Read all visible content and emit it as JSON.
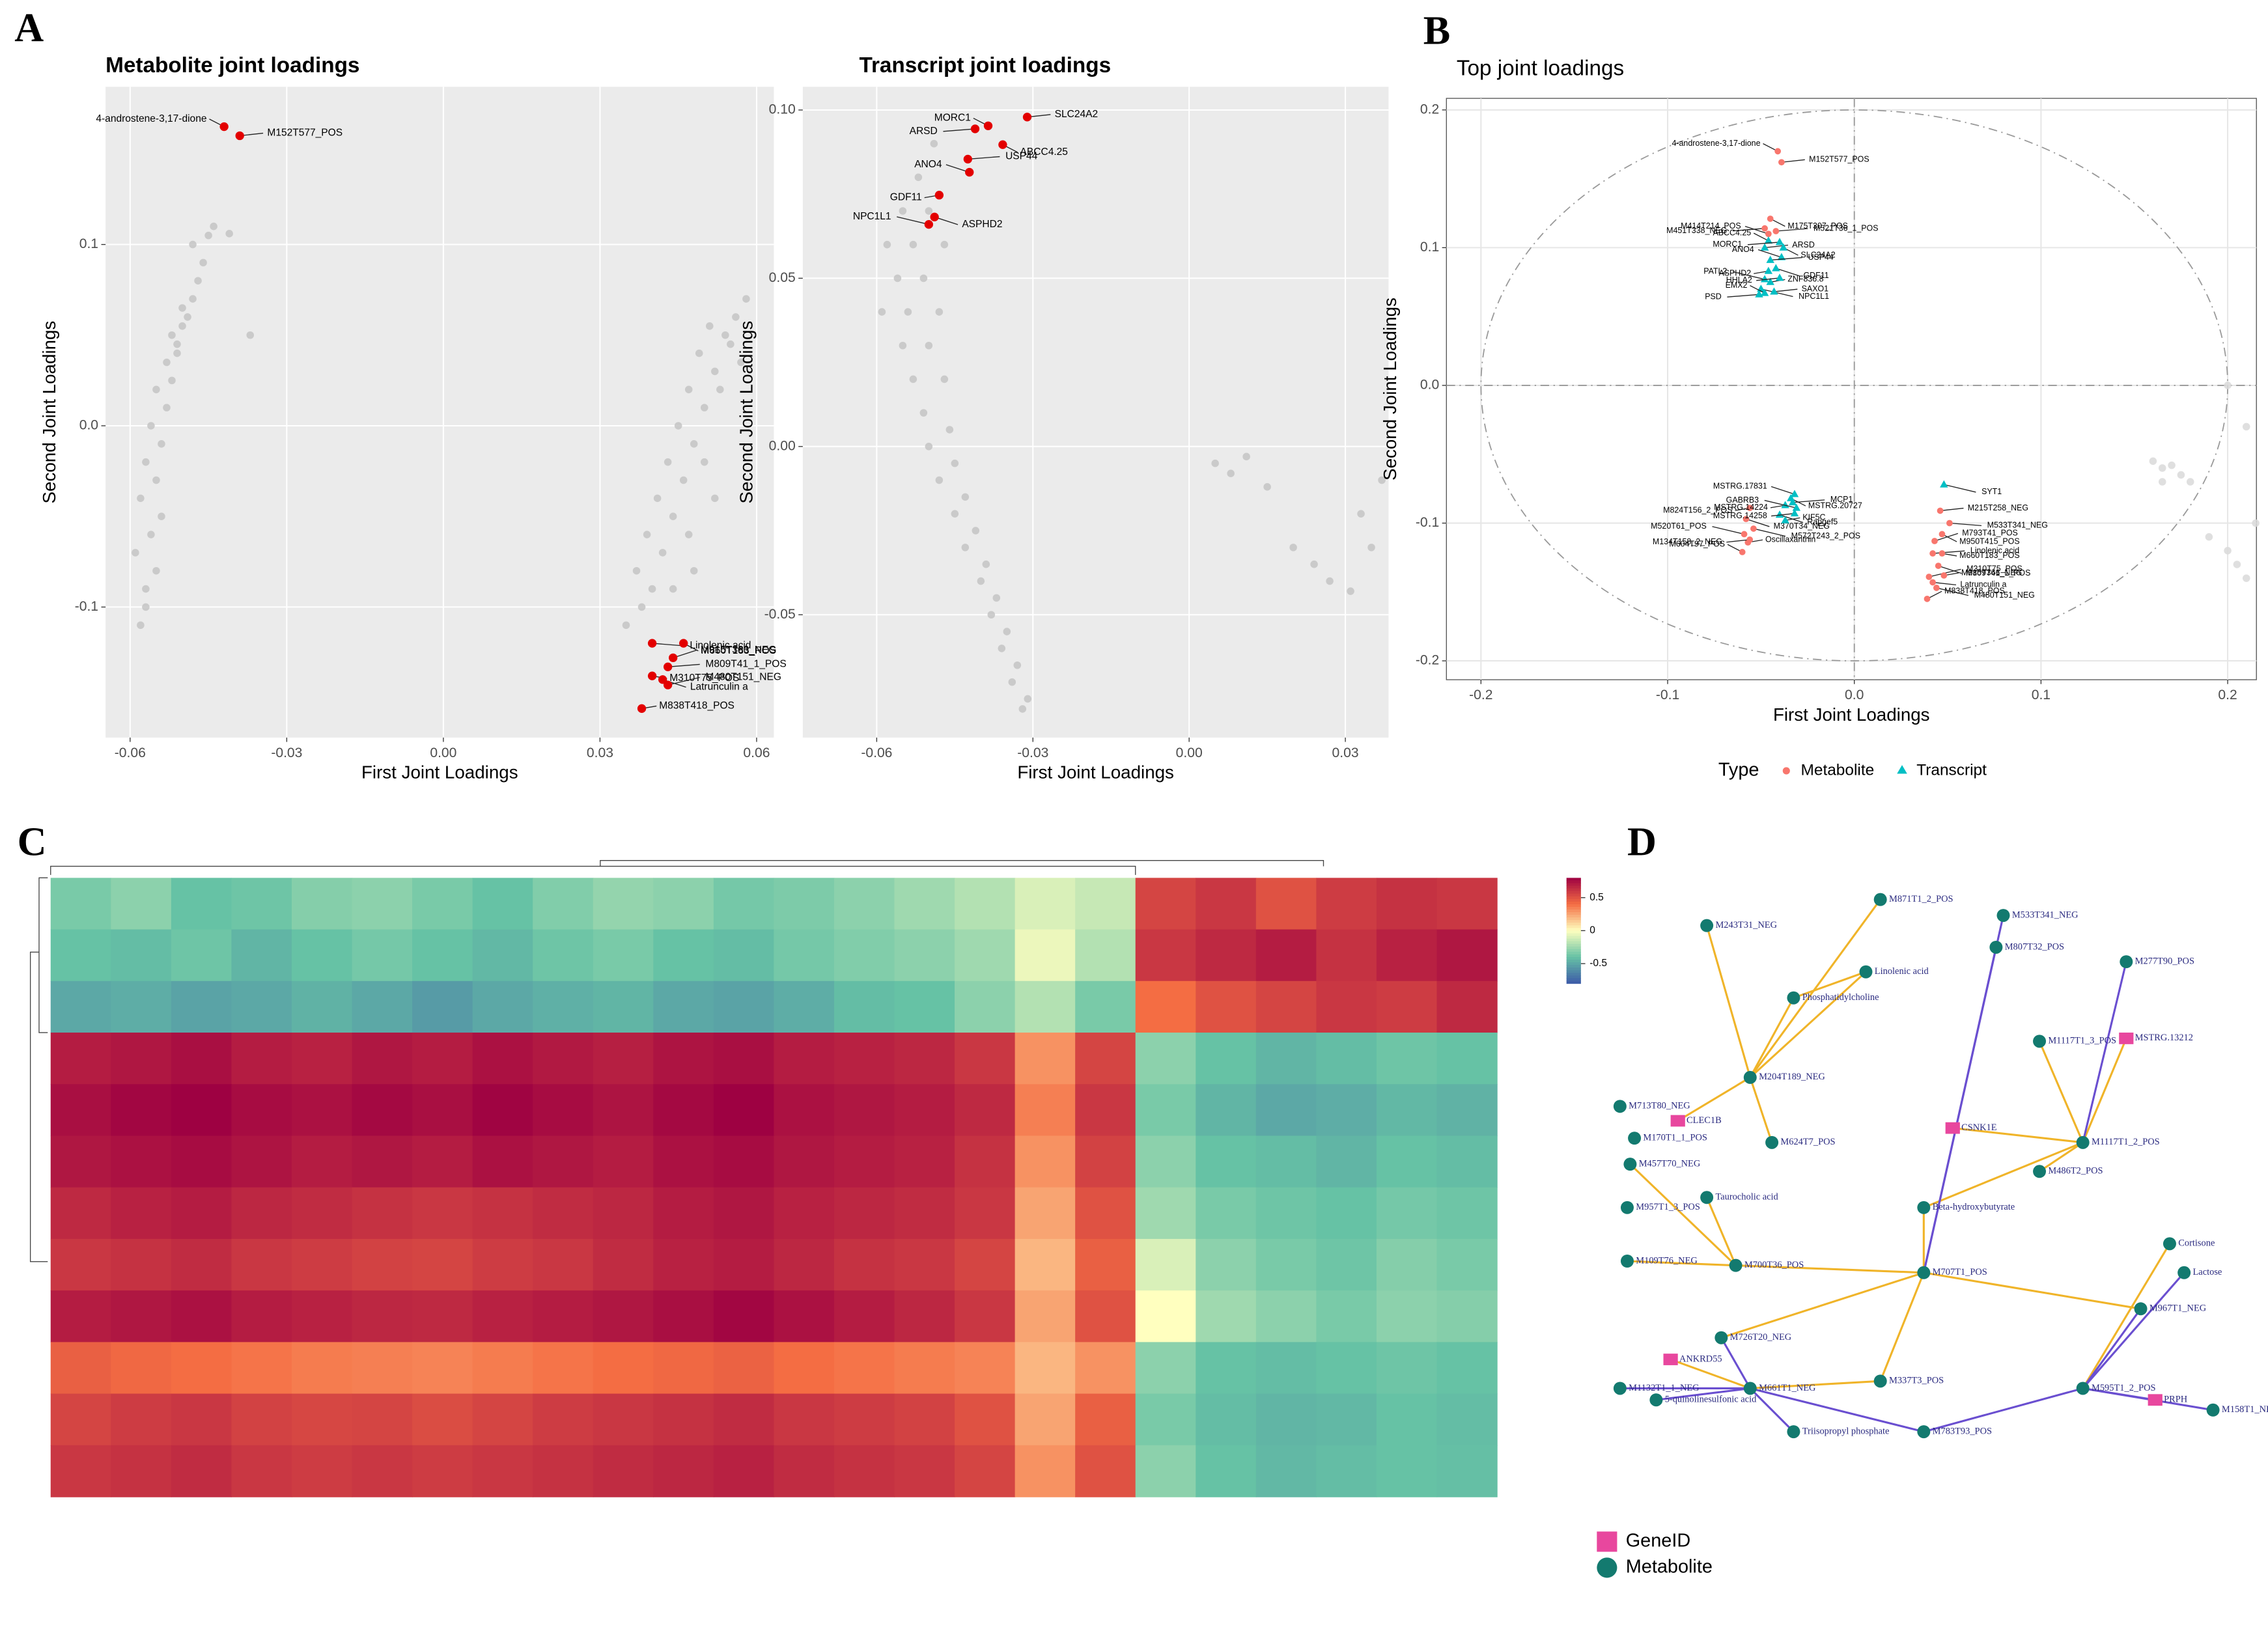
{
  "panel_labels": [
    "A",
    "B",
    "C",
    "D"
  ],
  "chart_data": [
    {
      "type": "scatter",
      "title": "Metabolite joint loadings",
      "x_label": "First Joint Loadings",
      "y_label": "Second Joint Loadings",
      "xlim": [
        -0.0647,
        0.0633
      ],
      "ylim": [
        -0.172,
        0.187
      ],
      "xticks": [
        -0.06,
        -0.03,
        {
          "value": 0,
          "label": "0.00"
        },
        0.03,
        0.06
      ],
      "yticks": [
        -0.1,
        {
          "value": 0,
          "label": "0.0"
        },
        0.1
      ],
      "grid": true,
      "background": "#ebebeb",
      "points": {
        "color": "#c4c4c4",
        "x": [
          -0.058,
          -0.057,
          -0.059,
          -0.056,
          -0.058,
          -0.055,
          -0.057,
          -0.054,
          -0.056,
          -0.053,
          -0.055,
          -0.052,
          -0.054,
          -0.053,
          -0.051,
          -0.052,
          -0.05,
          -0.049,
          -0.051,
          -0.048,
          -0.05,
          -0.047,
          -0.046,
          -0.048,
          -0.045,
          -0.044,
          -0.041,
          -0.037,
          -0.055,
          -0.057,
          0.038,
          0.04,
          0.037,
          0.042,
          0.039,
          0.044,
          0.041,
          0.046,
          0.043,
          0.048,
          0.045,
          0.05,
          0.047,
          0.052,
          0.049,
          0.054,
          0.051,
          0.056,
          0.058,
          0.055,
          0.053,
          0.05,
          0.047,
          0.044,
          0.035,
          0.057,
          0.052,
          0.048
        ],
        "y": [
          -0.11,
          -0.09,
          -0.07,
          -0.06,
          -0.04,
          -0.03,
          -0.02,
          -0.01,
          0.0,
          0.01,
          0.02,
          0.025,
          -0.05,
          0.035,
          0.04,
          0.05,
          0.055,
          0.06,
          0.045,
          0.07,
          0.065,
          0.08,
          0.09,
          0.1,
          0.105,
          0.11,
          0.106,
          0.05,
          -0.08,
          -0.1,
          -0.1,
          -0.09,
          -0.08,
          -0.07,
          -0.06,
          -0.05,
          -0.04,
          -0.03,
          -0.02,
          -0.01,
          0.0,
          0.01,
          0.02,
          0.03,
          0.04,
          0.05,
          0.055,
          0.06,
          0.07,
          0.045,
          0.02,
          -0.02,
          -0.06,
          -0.09,
          -0.11,
          0.035,
          -0.04,
          -0.08
        ]
      },
      "highlights": {
        "color": "#e30000",
        "labels": [
          "4-androstene-3,17-dione",
          "M152T577_POS",
          "Linolenic acid",
          "M660T183_POS",
          "M915T366_NEG",
          "M809T41_1_POS",
          "M310T75_POS",
          "Latrunculin a",
          "M480T151_NEG",
          "M838T418_POS"
        ],
        "x": [
          -0.042,
          -0.039,
          0.04,
          0.046,
          0.044,
          0.043,
          0.04,
          0.042,
          0.043,
          0.038
        ],
        "y": [
          0.165,
          0.16,
          -0.12,
          -0.12,
          -0.128,
          -0.133,
          -0.138,
          -0.14,
          -0.143,
          -0.156
        ]
      }
    },
    {
      "type": "scatter",
      "title": "Transcript joint loadings",
      "x_label": "First Joint Loadings",
      "y_label": "Second Joint Loadings",
      "xlim": [
        -0.0742,
        0.0383
      ],
      "ylim": [
        -0.0865,
        0.1069
      ],
      "xticks": [
        -0.06,
        -0.03,
        {
          "value": 0,
          "label": "0.00"
        },
        0.03
      ],
      "yticks": [
        -0.05,
        {
          "value": 0,
          "label": "0.00"
        },
        0.05,
        {
          "value": 0.1,
          "label": "0.10"
        }
      ],
      "grid": true,
      "background": "#ebebeb",
      "points": {
        "color": "#c4c4c4",
        "x": [
          -0.049,
          -0.052,
          -0.055,
          -0.05,
          -0.058,
          -0.053,
          -0.047,
          -0.056,
          -0.051,
          -0.059,
          -0.054,
          -0.048,
          -0.055,
          -0.05,
          -0.053,
          -0.047,
          -0.051,
          -0.046,
          -0.05,
          -0.045,
          -0.048,
          -0.043,
          -0.045,
          -0.041,
          -0.043,
          -0.039,
          -0.04,
          -0.037,
          -0.038,
          -0.035,
          -0.036,
          -0.033,
          -0.034,
          -0.031,
          -0.032,
          0.005,
          0.008,
          0.011,
          0.015,
          0.02,
          0.024,
          0.027,
          0.031,
          0.033,
          0.035,
          0.037
        ],
        "y": [
          0.09,
          0.08,
          0.07,
          0.07,
          0.06,
          0.06,
          0.06,
          0.05,
          0.05,
          0.04,
          0.04,
          0.04,
          0.03,
          0.03,
          0.02,
          0.02,
          0.01,
          0.005,
          0.0,
          -0.005,
          -0.01,
          -0.015,
          -0.02,
          -0.025,
          -0.03,
          -0.035,
          -0.04,
          -0.045,
          -0.05,
          -0.055,
          -0.06,
          -0.065,
          -0.07,
          -0.075,
          -0.078,
          -0.005,
          -0.008,
          -0.003,
          -0.012,
          -0.03,
          -0.035,
          -0.04,
          -0.043,
          -0.02,
          -0.03,
          -0.01
        ]
      },
      "highlights": {
        "color": "#e30000",
        "labels": [
          "MORC1",
          "SLC24A2",
          "ARSD",
          "ABCC4.25",
          "ANO4",
          "USP44",
          "GDF11",
          "ASPHD2",
          "NPC1L1"
        ],
        "x": [
          -0.0386,
          -0.0311,
          -0.0411,
          -0.0358,
          -0.0422,
          -0.0425,
          -0.048,
          -0.0489,
          -0.05
        ],
        "y": [
          0.0953,
          0.0979,
          0.0944,
          0.0897,
          0.0815,
          0.0854,
          0.0747,
          0.0682,
          0.066
        ]
      }
    },
    {
      "type": "scatter",
      "title": "Top joint loadings",
      "x_label": "First Joint Loadings",
      "y_label": "Second Joint Loadings",
      "xlim": [
        -0.2185,
        0.2154
      ],
      "ylim": [
        -0.2137,
        0.2084
      ],
      "xticks": [
        -0.2,
        -0.1,
        {
          "value": 0,
          "label": "0.0"
        },
        0.1,
        0.2
      ],
      "yticks": [
        -0.2,
        -0.1,
        {
          "value": 0,
          "label": "0.0"
        },
        0.1,
        0.2
      ],
      "grid": true,
      "background": "#ffffff",
      "legend_title": "Type",
      "points": {
        "color": "#d9d9d9",
        "x": [
          0.16,
          0.165,
          0.17,
          0.175,
          0.18,
          0.2,
          0.205,
          0.21,
          0.215,
          0.165,
          0.19,
          0.2,
          0.21
        ],
        "y": [
          -0.055,
          -0.06,
          -0.058,
          -0.065,
          -0.07,
          -0.12,
          -0.13,
          -0.14,
          -0.1,
          -0.07,
          -0.11,
          0.0,
          -0.03
        ]
      },
      "series": [
        {
          "name": "Metabolite",
          "color": "#f8766d",
          "marker": "circle",
          "labels": [
            "4-androstene-3,17-dione",
            "M152T577_POS",
            "M451T338_NEG",
            "M175T307_POS",
            "M414T214_POS",
            "M521T36_1_POS",
            "M824T156_2_POS",
            "M370T34_NEG",
            "M520T61_POS",
            "Oscillaxanthin",
            "M134T158_2_NEG",
            "M572T243_2_POS",
            "M604T97_POS",
            "M215T258_NEG",
            "M533T341_NEG",
            "M950T415_POS",
            "M793T41_POS",
            "Linolenic acid",
            "M660T183_POS",
            "M809T41_1_POS",
            "M310T75_POS",
            "M915T366_NEG",
            "Latrunculin a",
            "M480T151_NEG",
            "M838T418_POS"
          ],
          "x": [
            -0.041,
            -0.039,
            -0.048,
            -0.045,
            -0.046,
            -0.042,
            -0.056,
            -0.058,
            -0.059,
            -0.057,
            -0.056,
            -0.054,
            -0.06,
            0.046,
            0.051,
            0.047,
            0.043,
            0.042,
            0.047,
            0.045,
            0.04,
            0.048,
            0.042,
            0.044,
            0.039
          ],
          "y": [
            0.17,
            0.162,
            0.114,
            0.121,
            0.11,
            0.112,
            -0.089,
            -0.097,
            -0.108,
            -0.114,
            -0.112,
            -0.104,
            -0.121,
            -0.091,
            -0.1,
            -0.108,
            -0.113,
            -0.122,
            -0.122,
            -0.131,
            -0.139,
            -0.138,
            -0.143,
            -0.147,
            -0.155
          ]
        },
        {
          "name": "Transcript",
          "color": "#00bfc4",
          "marker": "triangle",
          "labels": [
            "ABCC4.25",
            "ARSD",
            "MORC1",
            "SLC24A2",
            "ANO4",
            "USP44",
            "ASPHD2",
            "GDF11",
            "PATL2",
            "ZNF836.8",
            "HHLA2",
            "NPC1L1",
            "EMX2",
            "SAXO1",
            "PSD",
            "MSTRG.20727",
            "MSTRG.17831",
            "MCP1",
            "MSTRG.14224",
            "Rapgef5",
            "GABRB3",
            "KIF5C",
            "MSTRG.14258",
            "SYT1"
          ],
          "x": [
            -0.046,
            -0.048,
            -0.04,
            -0.038,
            -0.039,
            -0.045,
            -0.046,
            -0.042,
            -0.048,
            -0.045,
            -0.04,
            -0.05,
            -0.048,
            -0.043,
            -0.051,
            -0.034,
            -0.032,
            -0.033,
            -0.037,
            -0.04,
            -0.031,
            -0.037,
            -0.032,
            0.048
          ],
          "y": [
            0.105,
            0.1,
            0.104,
            0.1,
            0.093,
            0.091,
            0.083,
            0.085,
            0.077,
            0.075,
            0.078,
            0.07,
            0.067,
            0.068,
            0.066,
            -0.082,
            -0.079,
            -0.085,
            -0.087,
            -0.094,
            -0.089,
            -0.098,
            -0.093,
            -0.072
          ]
        }
      ]
    },
    {
      "type": "heatmap",
      "clim": [
        -0.8,
        0.8
      ],
      "colorbar_ticks": [
        0.5,
        0,
        -0.5
      ],
      "values": [
        [
          -0.35,
          -0.3,
          -0.4,
          -0.38,
          -0.32,
          -0.3,
          -0.35,
          -0.4,
          -0.33,
          -0.28,
          -0.3,
          -0.36,
          -0.34,
          -0.3,
          -0.25,
          -0.2,
          -0.1,
          -0.15,
          0.55,
          0.6,
          0.5,
          0.58,
          0.62,
          0.6
        ],
        [
          -0.4,
          -0.42,
          -0.38,
          -0.45,
          -0.4,
          -0.36,
          -0.4,
          -0.44,
          -0.38,
          -0.35,
          -0.4,
          -0.42,
          -0.36,
          -0.33,
          -0.3,
          -0.25,
          -0.05,
          -0.2,
          0.6,
          0.65,
          0.7,
          0.62,
          0.68,
          0.72
        ],
        [
          -0.5,
          -0.48,
          -0.52,
          -0.5,
          -0.46,
          -0.5,
          -0.55,
          -0.5,
          -0.47,
          -0.45,
          -0.5,
          -0.52,
          -0.48,
          -0.42,
          -0.4,
          -0.3,
          -0.2,
          -0.35,
          0.4,
          0.5,
          0.55,
          0.6,
          0.58,
          0.65
        ],
        [
          0.7,
          0.72,
          0.75,
          0.7,
          0.68,
          0.72,
          0.7,
          0.74,
          0.71,
          0.69,
          0.73,
          0.75,
          0.7,
          0.68,
          0.66,
          0.6,
          0.3,
          0.55,
          -0.3,
          -0.4,
          -0.45,
          -0.42,
          -0.38,
          -0.4
        ],
        [
          0.75,
          0.78,
          0.8,
          0.76,
          0.74,
          0.77,
          0.75,
          0.79,
          0.76,
          0.73,
          0.77,
          0.8,
          0.74,
          0.72,
          0.7,
          0.65,
          0.35,
          0.6,
          -0.35,
          -0.45,
          -0.5,
          -0.48,
          -0.44,
          -0.46
        ],
        [
          0.72,
          0.74,
          0.76,
          0.73,
          0.7,
          0.72,
          0.7,
          0.74,
          0.72,
          0.7,
          0.74,
          0.76,
          0.72,
          0.7,
          0.68,
          0.62,
          0.3,
          0.56,
          -0.3,
          -0.4,
          -0.42,
          -0.45,
          -0.4,
          -0.42
        ],
        [
          0.65,
          0.68,
          0.7,
          0.66,
          0.64,
          0.62,
          0.6,
          0.62,
          0.64,
          0.66,
          0.7,
          0.72,
          0.68,
          0.66,
          0.64,
          0.6,
          0.25,
          0.5,
          -0.25,
          -0.35,
          -0.38,
          -0.4,
          -0.36,
          -0.38
        ],
        [
          0.6,
          0.62,
          0.64,
          0.6,
          0.58,
          0.56,
          0.55,
          0.58,
          0.6,
          0.64,
          0.68,
          0.7,
          0.66,
          0.62,
          0.6,
          0.55,
          0.2,
          0.45,
          -0.1,
          -0.3,
          -0.35,
          -0.38,
          -0.32,
          -0.35
        ],
        [
          0.7,
          0.72,
          0.74,
          0.7,
          0.68,
          0.66,
          0.65,
          0.68,
          0.7,
          0.72,
          0.75,
          0.78,
          0.74,
          0.7,
          0.66,
          0.6,
          0.25,
          0.5,
          0.0,
          -0.25,
          -0.3,
          -0.35,
          -0.3,
          -0.32
        ],
        [
          0.45,
          0.42,
          0.4,
          0.38,
          0.36,
          0.35,
          0.34,
          0.36,
          0.38,
          0.4,
          0.42,
          0.44,
          0.4,
          0.38,
          0.36,
          0.34,
          0.2,
          0.3,
          -0.3,
          -0.4,
          -0.42,
          -0.4,
          -0.38,
          -0.4
        ],
        [
          0.55,
          0.58,
          0.6,
          0.56,
          0.54,
          0.55,
          0.52,
          0.55,
          0.58,
          0.6,
          0.62,
          0.64,
          0.6,
          0.58,
          0.56,
          0.5,
          0.25,
          0.45,
          -0.35,
          -0.42,
          -0.45,
          -0.44,
          -0.4,
          -0.42
        ],
        [
          0.6,
          0.62,
          0.64,
          0.6,
          0.58,
          0.6,
          0.58,
          0.6,
          0.62,
          0.64,
          0.66,
          0.68,
          0.64,
          0.62,
          0.6,
          0.55,
          0.3,
          0.5,
          -0.3,
          -0.4,
          -0.44,
          -0.42,
          -0.4,
          -0.41
        ]
      ]
    },
    {
      "type": "network",
      "legend": [
        "GeneID",
        "Metabolite"
      ],
      "colors": [
        "#e8479e",
        "#137a6f"
      ],
      "nodes": [
        {
          "label": "M871T1_2_POS",
          "group": 1
        },
        {
          "label": "M243T31_NEG",
          "group": 1
        },
        {
          "label": "Linolenic acid",
          "group": 1
        },
        {
          "label": "M533T341_NEG",
          "group": 1
        },
        {
          "label": "M807T32_POS",
          "group": 1
        },
        {
          "label": "MSTRG.13212",
          "group": 0
        },
        {
          "label": "M277T90_POS",
          "group": 1
        },
        {
          "label": "Phosphatidylcholine",
          "group": 1
        },
        {
          "label": "M1117T1_3_POS",
          "group": 1
        },
        {
          "label": "M713T80_NEG",
          "group": 1
        },
        {
          "label": "CLEC1B",
          "group": 0
        },
        {
          "label": "M170T1_1_POS",
          "group": 1
        },
        {
          "label": "M204T189_NEG",
          "group": 1
        },
        {
          "label": "M624T7_POS",
          "group": 1
        },
        {
          "label": "Beta-hydroxybutyrate",
          "group": 1
        },
        {
          "label": "CSNK1E",
          "group": 0
        },
        {
          "label": "M1117T1_2_POS",
          "group": 1
        },
        {
          "label": "M486T2_POS",
          "group": 1
        },
        {
          "label": "M957T1_3_POS",
          "group": 1
        },
        {
          "label": "Taurocholic acid",
          "group": 1
        },
        {
          "label": "M457T70_NEG",
          "group": 1
        },
        {
          "label": "M700T36_POS",
          "group": 1
        },
        {
          "label": "M109T76_NEG",
          "group": 1
        },
        {
          "label": "M726T20_NEG",
          "group": 1
        },
        {
          "label": "ANKRD55",
          "group": 0
        },
        {
          "label": "M1132T1_1_NEG",
          "group": 1
        },
        {
          "label": "5-quinolinesulfonic acid",
          "group": 1
        },
        {
          "label": "M337T3_POS",
          "group": 1
        },
        {
          "label": "Triisopropyl phosphate",
          "group": 1
        },
        {
          "label": "M783T93_POS",
          "group": 1
        },
        {
          "label": "M158T1_NEG",
          "group": 1
        },
        {
          "label": "Cortisone",
          "group": 1
        },
        {
          "label": "Lactose",
          "group": 1
        },
        {
          "label": "M595T1_2_POS",
          "group": 1
        },
        {
          "label": "PRPH",
          "group": 0
        },
        {
          "label": "M967T1_NEG",
          "group": 1
        },
        {
          "label": "M707T1_POS",
          "group": 1
        },
        {
          "label": "M661T1_NEG",
          "group": 1
        }
      ]
    }
  ]
}
